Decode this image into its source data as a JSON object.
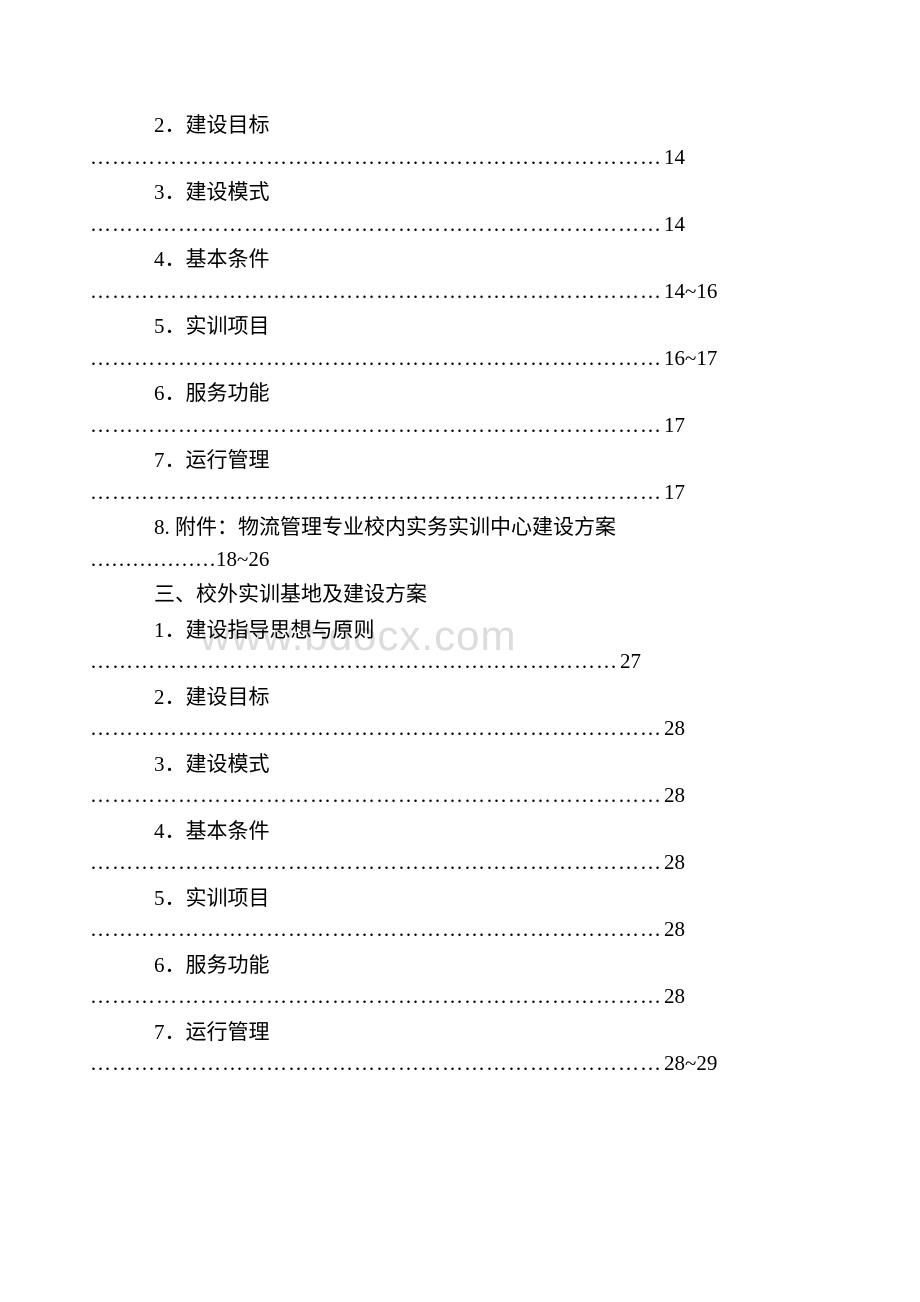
{
  "watermark": "www.bdocx.com",
  "entries": [
    {
      "title": "2．建设目标",
      "dots": "……………………………………………………………………",
      "page": " 14"
    },
    {
      "title": "3．建设模式",
      "dots": "……………………………………………………………………",
      "page": " 14"
    },
    {
      "title": "4．基本条件",
      "dots": "……………………………………………………………………",
      "page": "14~16"
    },
    {
      "title": "5．实训项目",
      "dots": "……………………………………………………………………",
      "page": "16~17"
    },
    {
      "title": "6．服务功能",
      "dots": "……………………………………………………………………",
      "page": " 17"
    },
    {
      "title": "7．运行管理",
      "dots": "……………………………………………………………………",
      "page": " 17"
    }
  ],
  "special": {
    "title": "8. 附件：物流管理专业校内实务实训中心建设方案",
    "dots": "………………",
    "page": "18~26"
  },
  "section_heading": "三、校外实训基地及建设方案",
  "entries2": [
    {
      "title": "1．建设指导思想与原则",
      "dots": "………………………………………………………………",
      "page": " 27"
    },
    {
      "title": "2．建设目标",
      "dots": "……………………………………………………………………",
      "page": " 28"
    },
    {
      "title": "3．建设模式",
      "dots": "……………………………………………………………………",
      "page": " 28"
    },
    {
      "title": "4．基本条件",
      "dots": "……………………………………………………………………",
      "page": " 28"
    },
    {
      "title": "5．实训项目",
      "dots": "……………………………………………………………………",
      "page": " 28"
    },
    {
      "title": "6．服务功能",
      "dots": "……………………………………………………………………",
      "page": " 28"
    },
    {
      "title": "7．运行管理",
      "dots": "……………………………………………………………………",
      "page": "28~29"
    }
  ],
  "colors": {
    "text": "#000000",
    "background": "#ffffff",
    "watermark": "#dcdcdc"
  },
  "typography": {
    "body_fontsize": 21,
    "watermark_fontsize": 42,
    "font_family": "SimSun"
  }
}
